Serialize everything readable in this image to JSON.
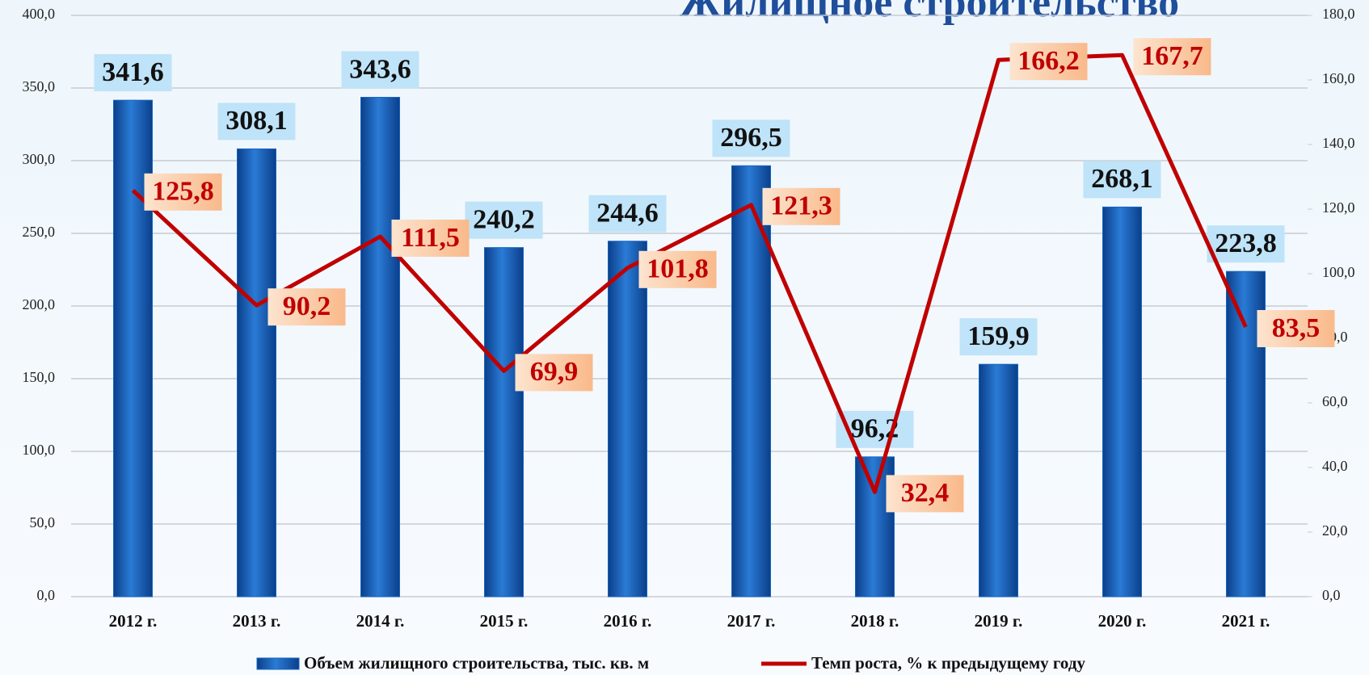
{
  "chart_data": {
    "type": "bar",
    "title": "Жилищное строительство",
    "categories": [
      "2012 г.",
      "2013 г.",
      "2014 г.",
      "2015 г.",
      "2016 г.",
      "2017 г.",
      "2018 г.",
      "2019 г.",
      "2020 г.",
      "2021 г."
    ],
    "series": [
      {
        "name": "Объем жилищного строительства, тыс. кв. м",
        "color": "#1565c0",
        "type": "bar",
        "values": [
          341.6,
          308.1,
          343.6,
          240.2,
          244.6,
          296.5,
          96.2,
          159.9,
          268.1,
          223.8
        ],
        "value_labels": [
          "341,6",
          "308,1",
          "343,6",
          "240,2",
          "244,6",
          "296,5",
          "96,2",
          "159,9",
          "268,1",
          "223,8"
        ]
      },
      {
        "name": "Темп роста, % к предыдущему году",
        "color": "#c00000",
        "type": "line",
        "axis": "y2",
        "values": [
          125.8,
          90.2,
          111.5,
          69.9,
          101.8,
          121.3,
          32.4,
          166.2,
          167.7,
          83.5
        ],
        "value_labels": [
          "125,8",
          "90,2",
          "111,5",
          "69,9",
          "101,8",
          "121,3",
          "32,4",
          "166,2",
          "167,7",
          "83,5"
        ]
      }
    ],
    "ylim": [
      0,
      400
    ],
    "yticks": [
      {
        "value": 0,
        "label": "0,0"
      },
      {
        "value": 50,
        "label": "50,0"
      },
      {
        "value": 100,
        "label": "100,0"
      },
      {
        "value": 150,
        "label": "150,0"
      },
      {
        "value": 200,
        "label": "200,0"
      },
      {
        "value": 250,
        "label": "250,0"
      },
      {
        "value": 300,
        "label": "300,0"
      },
      {
        "value": 350,
        "label": "350,0"
      },
      {
        "value": 400,
        "label": "400,0"
      }
    ],
    "y2lim": [
      0,
      180
    ],
    "y2ticks": [
      {
        "value": 0,
        "label": "0,0"
      },
      {
        "value": 20,
        "label": "20,0"
      },
      {
        "value": 40,
        "label": "40,0"
      },
      {
        "value": 60,
        "label": "60,0"
      },
      {
        "value": 80,
        "label": "80,0"
      },
      {
        "value": 100,
        "label": "100,0"
      },
      {
        "value": 120,
        "label": "120,0"
      },
      {
        "value": 140,
        "label": "140,0"
      },
      {
        "value": 160,
        "label": "160,0"
      },
      {
        "value": 180,
        "label": "180,0"
      }
    ],
    "grid": true
  }
}
